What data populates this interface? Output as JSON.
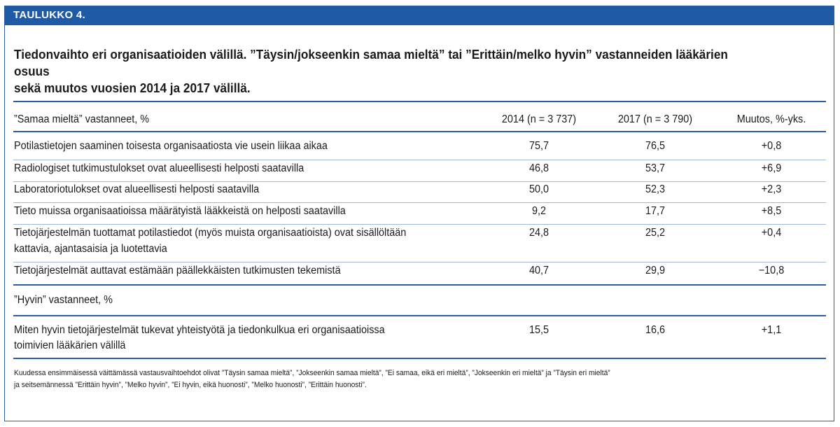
{
  "label": "TAULUKKO 4.",
  "title_lines": [
    "Tiedonvaihto eri organisaatioiden välillä. ”Täysin/jokseenkin samaa mieltä” tai ”Erittäin/melko hyvin” vastanneiden lääkärien osuus",
    "sekä muutos vuosien 2014 ja 2017 välillä."
  ],
  "header": {
    "section1": "”Samaa mieltä” vastanneet, %",
    "col2014": "2014 (n = 3 737)",
    "col2017": "2017 (n = 3 790)",
    "colChange": "Muutos, %-yks."
  },
  "rows1": [
    {
      "text1": "Potilastietojen saaminen toisesta organisaatiosta vie usein liikaa aikaa",
      "text2": "",
      "v2014": "75,7",
      "v2017": "76,5",
      "change": "+0,8"
    },
    {
      "text1": "Radiologiset tutkimustulokset ovat alueellisesti helposti saatavilla",
      "text2": "",
      "v2014": "46,8",
      "v2017": "53,7",
      "change": "+6,9"
    },
    {
      "text1": "Laboratoriotulokset ovat alueellisesti helposti saatavilla",
      "text2": "",
      "v2014": "50,0",
      "v2017": "52,3",
      "change": "+2,3"
    },
    {
      "text1": "Tieto muissa organisaatioissa määrätyistä lääkkeistä on helposti saatavilla",
      "text2": "",
      "v2014": "9,2",
      "v2017": "17,7",
      "change": "+8,5"
    },
    {
      "text1": "Tietojärjestelmän tuottamat potilastiedot (myös muista organisaatioista) ovat sisällöltään",
      "text2": "kattavia, ajantasaisia ja luotettavia",
      "v2014": "24,8",
      "v2017": "25,2",
      "change": "+0,4"
    },
    {
      "text1": "Tietojärjestelmät auttavat estämään päällekkäisten tutkimusten tekemistä",
      "text2": "",
      "v2014": "40,7",
      "v2017": "29,9",
      "change": "−10,8"
    }
  ],
  "section2": "”Hyvin” vastanneet, %",
  "rows2": [
    {
      "text1": "Miten hyvin tietojärjestelmät tukevat yhteistyötä ja tiedonkulkua eri organisaatioissa",
      "text2": "toimivien lääkärien välillä",
      "v2014": "15,5",
      "v2017": "16,6",
      "change": "+1,1"
    }
  ],
  "footnote_lines": [
    "Kuudessa ensimmäisessä väittämässä vastausvaihtoehdot olivat ”Täysin samaa mieltä”, ”Jokseenkin samaa mieltä”, ”Ei samaa, eikä eri mieltä”, ”Jokseenkin eri mieltä” ja ”Täysin eri mieltä”",
    "ja seitsemännessä ”Erittäin hyvin”, ”Melko hyvin”, ”Ei hyvin, eikä huonosti”, ”Melko huonosti”, ”Erittäin huonosti”."
  ],
  "colors": {
    "accent": "#1f5aa6",
    "rule": "#2a5d9f",
    "text": "#1a1a1a"
  }
}
